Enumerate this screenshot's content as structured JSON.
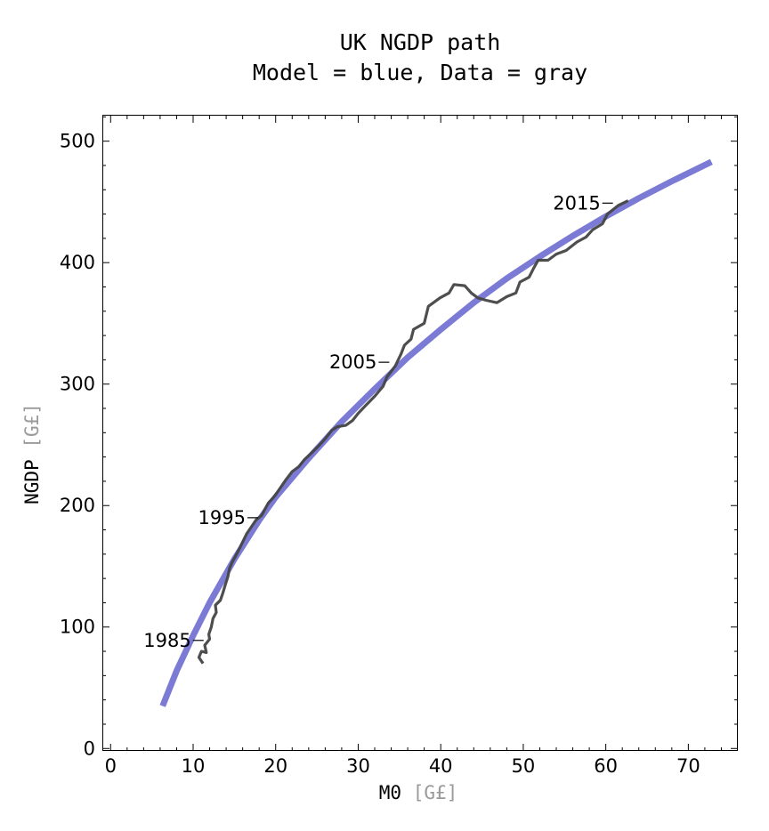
{
  "chart_data": {
    "type": "line",
    "title": "UK NGDP path",
    "subtitle": "Model = blue, Data = gray",
    "xlabel": "M0",
    "xlabel_unit": "[G£]",
    "ylabel": "NGDP",
    "ylabel_unit": "[G£]",
    "xlim": [
      -1,
      76
    ],
    "ylim": [
      -2,
      521
    ],
    "x_ticks": [
      0,
      10,
      20,
      30,
      40,
      50,
      60,
      70
    ],
    "y_ticks": [
      0,
      100,
      200,
      300,
      400,
      500
    ],
    "grid": false,
    "series": [
      {
        "color": "#7b7bd6",
        "points": [
          [
            6.3,
            35
          ],
          [
            8,
            64
          ],
          [
            10,
            93
          ],
          [
            12,
            120
          ],
          [
            15,
            156
          ],
          [
            18,
            188
          ],
          [
            20,
            207
          ],
          [
            24,
            239
          ],
          [
            28,
            269
          ],
          [
            32,
            296
          ],
          [
            36,
            322
          ],
          [
            40,
            345
          ],
          [
            44,
            367
          ],
          [
            48,
            387
          ],
          [
            52,
            405
          ],
          [
            56,
            422
          ],
          [
            60,
            438
          ],
          [
            64,
            453
          ],
          [
            68,
            467
          ],
          [
            72.8,
            483
          ]
        ]
      },
      {
        "color": "#444444",
        "points": [
          [
            11.2,
            70
          ],
          [
            10.7,
            75
          ],
          [
            11,
            80
          ],
          [
            11.6,
            79
          ],
          [
            11.4,
            85
          ],
          [
            12,
            90
          ],
          [
            11.9,
            94
          ],
          [
            12.2,
            100
          ],
          [
            12.4,
            107
          ],
          [
            12.8,
            112
          ],
          [
            12.7,
            118
          ],
          [
            13.3,
            122
          ],
          [
            13.6,
            128
          ],
          [
            13.9,
            135
          ],
          [
            14.2,
            141
          ],
          [
            14.4,
            148
          ],
          [
            14.7,
            153
          ],
          [
            15.1,
            158
          ],
          [
            15.5,
            163
          ],
          [
            16,
            170
          ],
          [
            16.5,
            177
          ],
          [
            17.2,
            184
          ],
          [
            17.6,
            188
          ],
          [
            18.3,
            192
          ],
          [
            18.7,
            197
          ],
          [
            19.1,
            202
          ],
          [
            19.9,
            208
          ],
          [
            20.5,
            214
          ],
          [
            21.2,
            221
          ],
          [
            22,
            228
          ],
          [
            22.8,
            232
          ],
          [
            23.5,
            238
          ],
          [
            24.3,
            243
          ],
          [
            25.2,
            249
          ],
          [
            26,
            255
          ],
          [
            26.8,
            262
          ],
          [
            27.5,
            265
          ],
          [
            28.5,
            266
          ],
          [
            29.3,
            270
          ],
          [
            30,
            276
          ],
          [
            31,
            283
          ],
          [
            32,
            290
          ],
          [
            33,
            298
          ],
          [
            33.5,
            306
          ],
          [
            34.5,
            315
          ],
          [
            35.2,
            325
          ],
          [
            35.6,
            332
          ],
          [
            36.4,
            337
          ],
          [
            36.7,
            345
          ],
          [
            38,
            350
          ],
          [
            38.5,
            364
          ],
          [
            39.9,
            371
          ],
          [
            41,
            375
          ],
          [
            41.6,
            382
          ],
          [
            42.9,
            381
          ],
          [
            43.7,
            375
          ],
          [
            44.5,
            371
          ],
          [
            45.5,
            369
          ],
          [
            46.8,
            367
          ],
          [
            48,
            372
          ],
          [
            49.1,
            375
          ],
          [
            49.6,
            384
          ],
          [
            50.7,
            388
          ],
          [
            51.3,
            396
          ],
          [
            51.8,
            402
          ],
          [
            53,
            402
          ],
          [
            54,
            407
          ],
          [
            55.2,
            410
          ],
          [
            56.5,
            417
          ],
          [
            57.6,
            421
          ],
          [
            58.4,
            427
          ],
          [
            59.6,
            432
          ],
          [
            60.2,
            440
          ],
          [
            61.5,
            447
          ],
          [
            62.7,
            451
          ]
        ]
      }
    ],
    "annotations": [
      {
        "text": "1985",
        "x": 11.7,
        "y": 89
      },
      {
        "text": "1995",
        "x": 18.3,
        "y": 190
      },
      {
        "text": "2005",
        "x": 34.2,
        "y": 318
      },
      {
        "text": "2015",
        "x": 61.3,
        "y": 449
      }
    ]
  }
}
